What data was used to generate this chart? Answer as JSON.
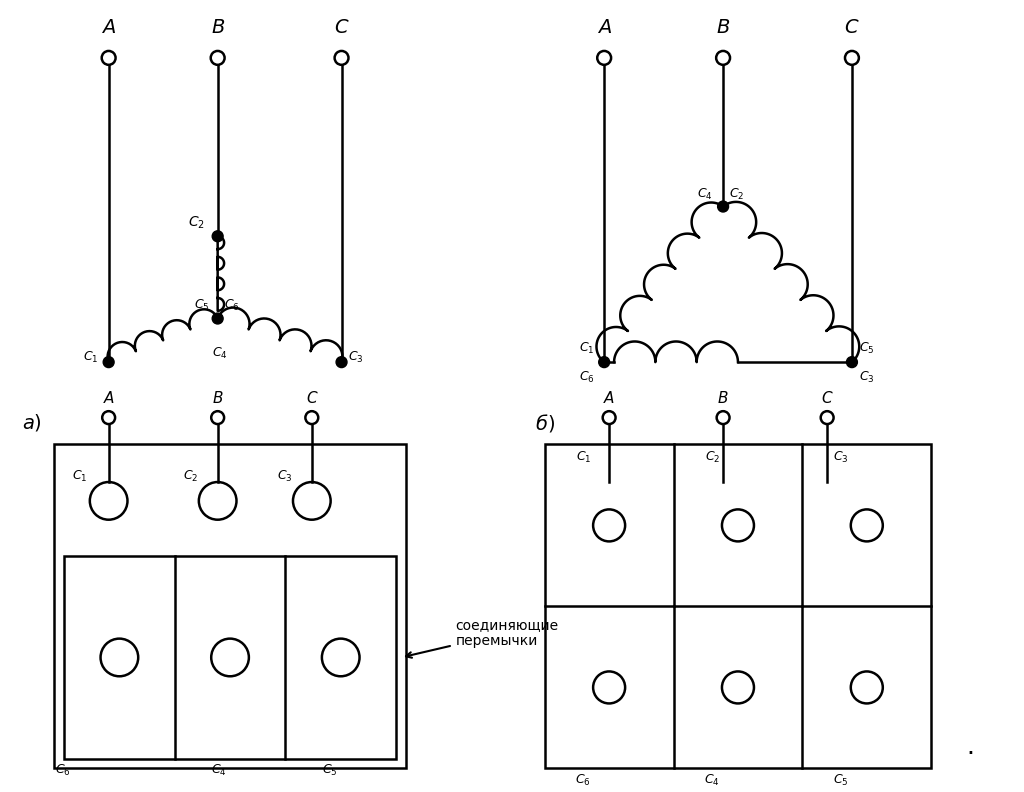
{
  "bg_color": "#ffffff",
  "lc": "#000000",
  "lw": 1.8,
  "fs_big": 14,
  "fs_mid": 11,
  "fs_small": 9
}
